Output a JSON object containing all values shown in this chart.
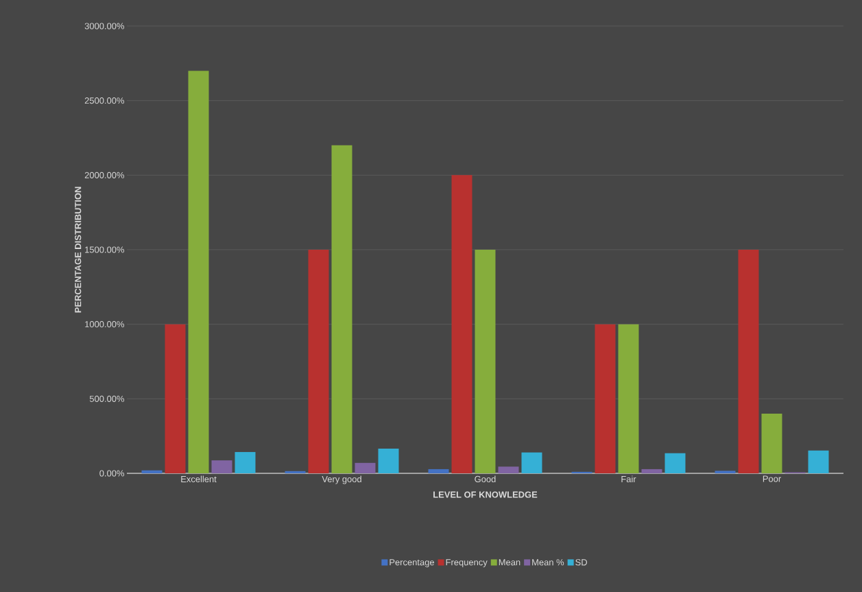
{
  "chart_data": {
    "type": "bar",
    "xlabel": "LEVEL OF KNOWLEDGE",
    "ylabel": "PERCENTAGE DISTRIBUTION",
    "categories": [
      "Excellent",
      "Very good",
      "Good",
      "Fair",
      "Poor"
    ],
    "series": [
      {
        "name": "Percentage",
        "color": "#4472c4",
        "values": [
          20,
          15,
          28,
          10,
          17
        ]
      },
      {
        "name": "Frequency",
        "color": "#b8312f",
        "values": [
          1000,
          1500,
          2000,
          1000,
          1500
        ]
      },
      {
        "name": "Mean",
        "color": "#86ad3c",
        "values": [
          2700,
          2200,
          1500,
          1000,
          400
        ]
      },
      {
        "name": "Mean %",
        "color": "#8064a2",
        "values": [
          87,
          70,
          45,
          28,
          7
        ]
      },
      {
        "name": "SD",
        "color": "#35b0d6",
        "values": [
          143,
          166,
          140,
          135,
          153
        ]
      }
    ],
    "ylim": [
      0,
      3000
    ],
    "yticks": [
      {
        "value": 0,
        "label": "0.00%"
      },
      {
        "value": 500,
        "label": "500.00%"
      },
      {
        "value": 1000,
        "label": "1000.00%"
      },
      {
        "value": 1500,
        "label": "1500.00%"
      },
      {
        "value": 2000,
        "label": "2000.00%"
      },
      {
        "value": 2500,
        "label": "2500.00%"
      },
      {
        "value": 3000,
        "label": "3000.00%"
      }
    ],
    "grid": "y",
    "legend": "bottom"
  }
}
